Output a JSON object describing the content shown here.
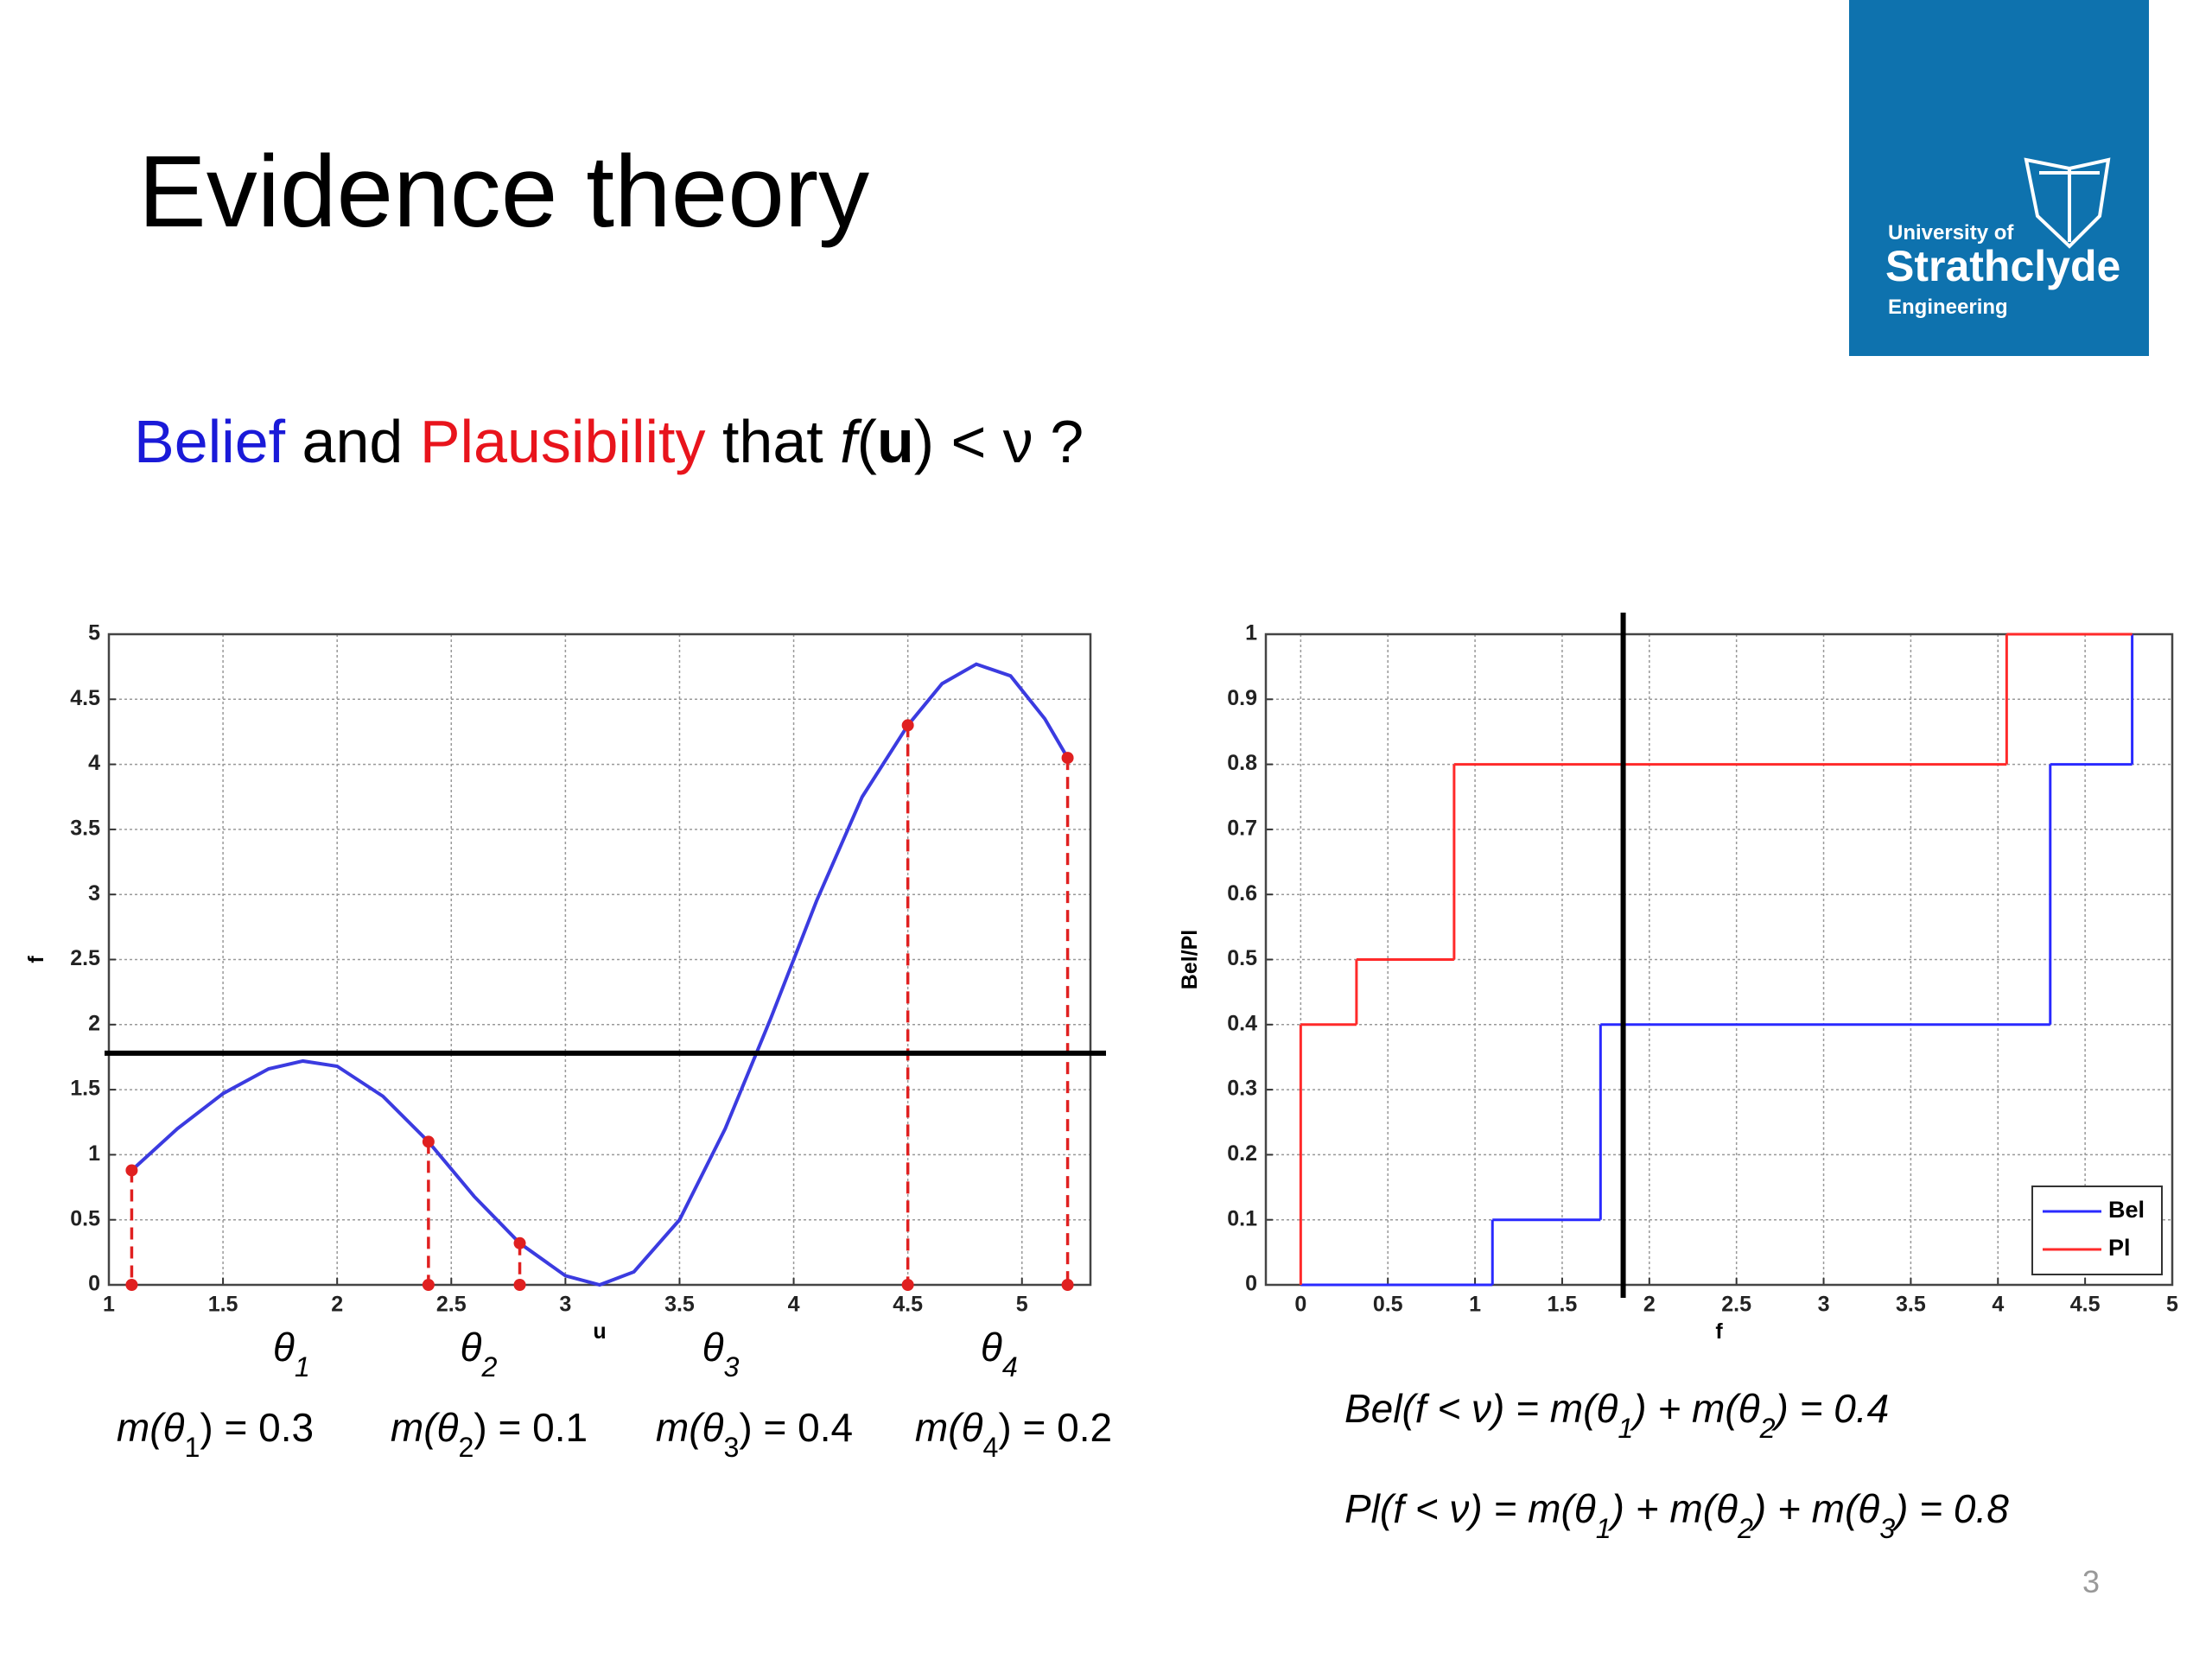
{
  "title": "Evidence theory",
  "logo": {
    "line1": "University of",
    "line2": "Strathclyde",
    "line3": "Engineering"
  },
  "subtitle": {
    "parts": [
      {
        "text": "Belief",
        "color": "#1a1ad8"
      },
      {
        "text": " and ",
        "color": "#000000"
      },
      {
        "text": "Plausibility",
        "color": "#e8141c"
      },
      {
        "text": " that ",
        "color": "#000000"
      },
      {
        "text": "f",
        "color": "#000000",
        "italic": true
      },
      {
        "text": "(",
        "color": "#000000"
      },
      {
        "text": "u",
        "color": "#000000",
        "bold": true
      },
      {
        "text": ") < ν ?",
        "color": "#000000"
      }
    ]
  },
  "theta_labels": [
    {
      "parts": [
        "θ",
        "1"
      ]
    },
    {
      "parts": [
        "θ",
        "2"
      ]
    },
    {
      "parts": [
        "θ",
        "3"
      ]
    },
    {
      "parts": [
        "θ",
        "4"
      ]
    }
  ],
  "masses": [
    {
      "parts": [
        "m(θ",
        "1",
        ") = 0.3"
      ]
    },
    {
      "parts": [
        "m(θ",
        "2",
        ") = 0.1"
      ]
    },
    {
      "parts": [
        "m(θ",
        "3",
        ") = 0.4"
      ]
    },
    {
      "parts": [
        "m(θ",
        "4",
        ") = 0.2"
      ]
    }
  ],
  "formulas": [
    {
      "parts": [
        "Bel(f < ν) = m(θ",
        "1",
        ") + m(θ",
        "2",
        ") = 0.4"
      ]
    },
    {
      "parts": [
        "Pl(f < ν) = m(θ",
        "1",
        ") + m(θ",
        "2",
        ") + m(θ",
        "3",
        ") = 0.8"
      ]
    }
  ],
  "page_number": "3",
  "chart_data": [
    {
      "type": "line",
      "xlabel": "u",
      "ylabel": "f",
      "xlim": [
        1,
        5.3
      ],
      "ylim": [
        0,
        5
      ],
      "xticks": [
        1,
        1.5,
        2,
        2.5,
        3,
        3.5,
        4,
        4.5,
        5
      ],
      "yticks": [
        0,
        0.5,
        1,
        1.5,
        2,
        2.5,
        3,
        3.5,
        4,
        4.5,
        5
      ],
      "grid": true,
      "hlines": [
        1.78
      ],
      "series": [
        {
          "color": "#3b3be0",
          "style": "line",
          "x": [
            1.1,
            1.3,
            1.5,
            1.7,
            1.85,
            2.0,
            2.2,
            2.4,
            2.6,
            2.8,
            3.0,
            3.15,
            3.3,
            3.5,
            3.7,
            3.9,
            4.1,
            4.3,
            4.5,
            4.65,
            4.8,
            4.95,
            5.1,
            5.2
          ],
          "values": [
            0.88,
            1.2,
            1.47,
            1.66,
            1.72,
            1.68,
            1.45,
            1.1,
            0.68,
            0.32,
            0.07,
            0.0,
            0.1,
            0.5,
            1.2,
            2.05,
            2.95,
            3.75,
            4.3,
            4.62,
            4.77,
            4.68,
            4.35,
            4.05
          ]
        },
        {
          "color": "#e02020",
          "style": "markers",
          "x": [
            1.1,
            2.4,
            2.8,
            4.5,
            5.2
          ],
          "values": [
            0.88,
            1.1,
            0.32,
            4.3,
            4.05
          ]
        }
      ]
    },
    {
      "type": "step",
      "xlabel": "f",
      "ylabel": "Bel/Pl",
      "xlim": [
        -0.2,
        5
      ],
      "ylim": [
        0,
        1
      ],
      "xticks": [
        0,
        0.5,
        1,
        1.5,
        2,
        2.5,
        3,
        3.5,
        4,
        4.5,
        5
      ],
      "yticks": [
        0,
        0.1,
        0.2,
        0.3,
        0.4,
        0.5,
        0.6,
        0.7,
        0.8,
        0.9,
        1
      ],
      "grid": true,
      "vlines": [
        1.85
      ],
      "legend": "lower right",
      "series": [
        {
          "name": "Bel",
          "color": "#2a2aff",
          "x": [
            0,
            1.1,
            1.72,
            4.3,
            4.77
          ],
          "values": [
            0,
            0.1,
            0.4,
            0.8,
            1
          ]
        },
        {
          "name": "Pl",
          "color": "#ff2a2a",
          "x": [
            0,
            0,
            0.32,
            0.88,
            4.05,
            4.77
          ],
          "values": [
            0,
            0.4,
            0.5,
            0.8,
            1,
            1
          ]
        }
      ]
    }
  ]
}
